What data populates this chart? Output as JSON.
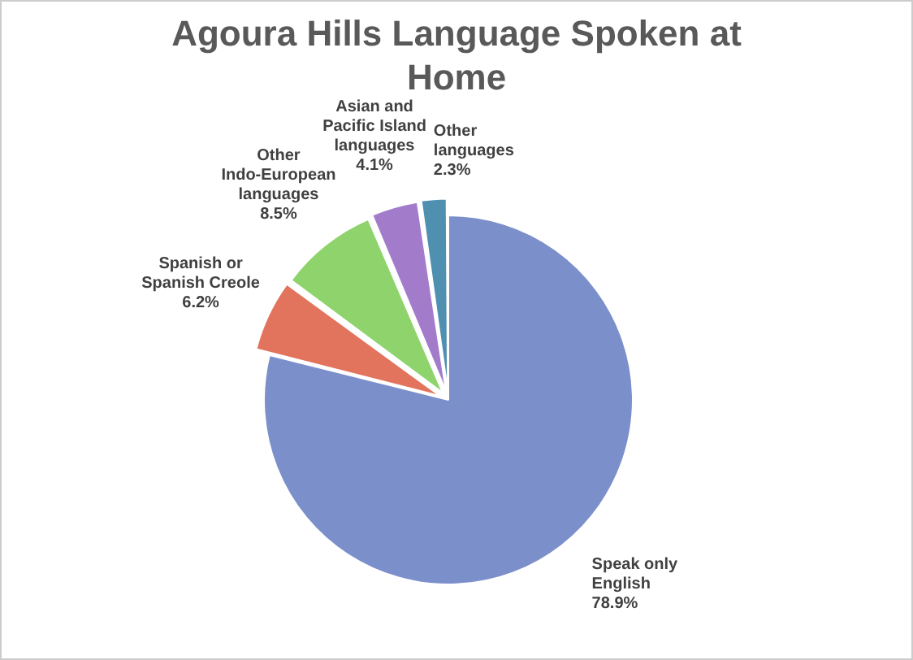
{
  "chart_data": {
    "type": "pie",
    "title": "Agoura Hills Language Spoken at Home",
    "categories": [
      "Speak only English",
      "Spanish or Spanish Creole",
      "Other Indo-European languages",
      "Asian and Pacific Island languages",
      "Other languages"
    ],
    "values": [
      78.9,
      6.2,
      8.5,
      4.1,
      2.3
    ],
    "colors": [
      "#7b8fcb",
      "#e2745e",
      "#8ed36c",
      "#a27ccb",
      "#4f8fb0"
    ],
    "value_labels": [
      "78.9%",
      "6.2%",
      "8.5%",
      "4.1%",
      "2.3%"
    ],
    "legend": false
  }
}
